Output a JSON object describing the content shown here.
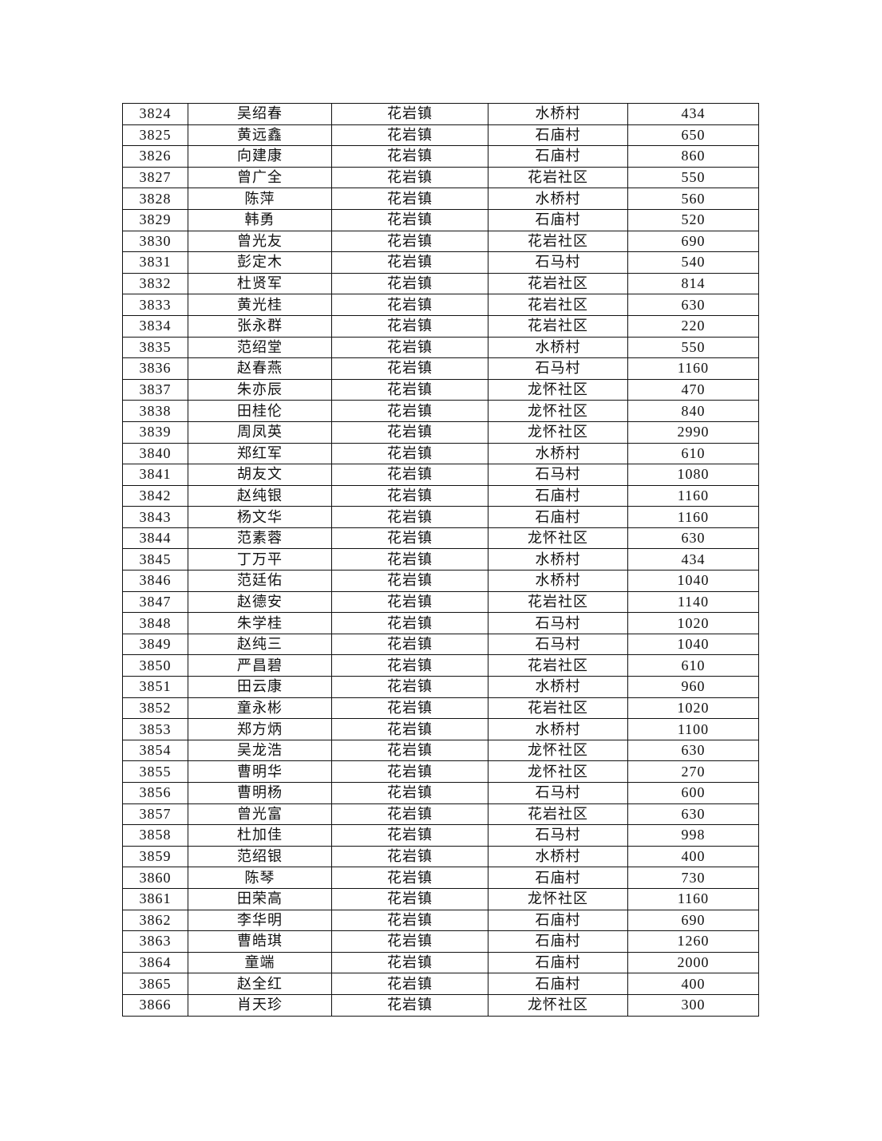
{
  "table": {
    "rows": [
      [
        "3824",
        "吴绍春",
        "花岩镇",
        "水桥村",
        "434"
      ],
      [
        "3825",
        "黄远鑫",
        "花岩镇",
        "石庙村",
        "650"
      ],
      [
        "3826",
        "向建康",
        "花岩镇",
        "石庙村",
        "860"
      ],
      [
        "3827",
        "曾广全",
        "花岩镇",
        "花岩社区",
        "550"
      ],
      [
        "3828",
        "陈萍",
        "花岩镇",
        "水桥村",
        "560"
      ],
      [
        "3829",
        "韩勇",
        "花岩镇",
        "石庙村",
        "520"
      ],
      [
        "3830",
        "曾光友",
        "花岩镇",
        "花岩社区",
        "690"
      ],
      [
        "3831",
        "彭定木",
        "花岩镇",
        "石马村",
        "540"
      ],
      [
        "3832",
        "杜贤军",
        "花岩镇",
        "花岩社区",
        "814"
      ],
      [
        "3833",
        "黄光桂",
        "花岩镇",
        "花岩社区",
        "630"
      ],
      [
        "3834",
        "张永群",
        "花岩镇",
        "花岩社区",
        "220"
      ],
      [
        "3835",
        "范绍堂",
        "花岩镇",
        "水桥村",
        "550"
      ],
      [
        "3836",
        "赵春燕",
        "花岩镇",
        "石马村",
        "1160"
      ],
      [
        "3837",
        "朱亦辰",
        "花岩镇",
        "龙怀社区",
        "470"
      ],
      [
        "3838",
        "田桂伦",
        "花岩镇",
        "龙怀社区",
        "840"
      ],
      [
        "3839",
        "周凤英",
        "花岩镇",
        "龙怀社区",
        "2990"
      ],
      [
        "3840",
        "郑红军",
        "花岩镇",
        "水桥村",
        "610"
      ],
      [
        "3841",
        "胡友文",
        "花岩镇",
        "石马村",
        "1080"
      ],
      [
        "3842",
        "赵纯银",
        "花岩镇",
        "石庙村",
        "1160"
      ],
      [
        "3843",
        "杨文华",
        "花岩镇",
        "石庙村",
        "1160"
      ],
      [
        "3844",
        "范素蓉",
        "花岩镇",
        "龙怀社区",
        "630"
      ],
      [
        "3845",
        "丁万平",
        "花岩镇",
        "水桥村",
        "434"
      ],
      [
        "3846",
        "范廷佑",
        "花岩镇",
        "水桥村",
        "1040"
      ],
      [
        "3847",
        "赵德安",
        "花岩镇",
        "花岩社区",
        "1140"
      ],
      [
        "3848",
        "朱学桂",
        "花岩镇",
        "石马村",
        "1020"
      ],
      [
        "3849",
        "赵纯三",
        "花岩镇",
        "石马村",
        "1040"
      ],
      [
        "3850",
        "严昌碧",
        "花岩镇",
        "花岩社区",
        "610"
      ],
      [
        "3851",
        "田云康",
        "花岩镇",
        "水桥村",
        "960"
      ],
      [
        "3852",
        "童永彬",
        "花岩镇",
        "花岩社区",
        "1020"
      ],
      [
        "3853",
        "郑方炳",
        "花岩镇",
        "水桥村",
        "1100"
      ],
      [
        "3854",
        "吴龙浩",
        "花岩镇",
        "龙怀社区",
        "630"
      ],
      [
        "3855",
        "曹明华",
        "花岩镇",
        "龙怀社区",
        "270"
      ],
      [
        "3856",
        "曹明杨",
        "花岩镇",
        "石马村",
        "600"
      ],
      [
        "3857",
        "曾光富",
        "花岩镇",
        "花岩社区",
        "630"
      ],
      [
        "3858",
        "杜加佳",
        "花岩镇",
        "石马村",
        "998"
      ],
      [
        "3859",
        "范绍银",
        "花岩镇",
        "水桥村",
        "400"
      ],
      [
        "3860",
        "陈琴",
        "花岩镇",
        "石庙村",
        "730"
      ],
      [
        "3861",
        "田荣高",
        "花岩镇",
        "龙怀社区",
        "1160"
      ],
      [
        "3862",
        "李华明",
        "花岩镇",
        "石庙村",
        "690"
      ],
      [
        "3863",
        "曹皓琪",
        "花岩镇",
        "石庙村",
        "1260"
      ],
      [
        "3864",
        "童端",
        "花岩镇",
        "石庙村",
        "2000"
      ],
      [
        "3865",
        "赵全红",
        "花岩镇",
        "石庙村",
        "400"
      ],
      [
        "3866",
        "肖天珍",
        "花岩镇",
        "龙怀社区",
        "300"
      ]
    ]
  }
}
